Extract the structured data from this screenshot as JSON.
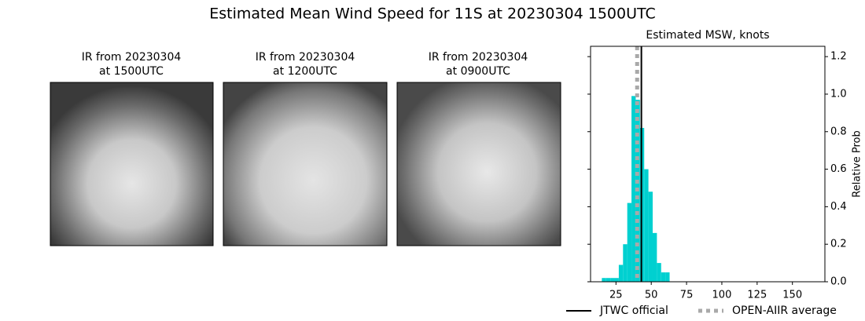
{
  "title": "Estimated Mean Wind Speed for 11S at 20230304 1500UTC",
  "panels": [
    {
      "title": [
        "IR from 20230304",
        "at 1500UTC"
      ]
    },
    {
      "title": [
        "IR from 20230304",
        "at 1200UTC"
      ]
    },
    {
      "title": [
        "IR from 20230304",
        "at 0900UTC"
      ]
    }
  ],
  "chart_data": {
    "type": "histogram",
    "title": "Estimated MSW, knots",
    "y_label": "Relative Prob",
    "bins": [
      15,
      18,
      21,
      24,
      27,
      30,
      33,
      36,
      39,
      42,
      45,
      48,
      51,
      54,
      57,
      60,
      63
    ],
    "values": [
      0.02,
      0.02,
      0.02,
      0.02,
      0.09,
      0.2,
      0.42,
      0.99,
      0.97,
      0.82,
      0.6,
      0.48,
      0.26,
      0.1,
      0.05,
      0.05
    ],
    "color": "#00d0d0",
    "xlim": [
      7,
      173
    ],
    "xticks": [
      25,
      50,
      75,
      100,
      125,
      150
    ],
    "ylim": [
      0,
      1.255
    ],
    "yticks": [
      {
        "value": 0,
        "label": "0.0"
      },
      {
        "value": 0.2,
        "label": "0.2"
      },
      {
        "value": 0.4,
        "label": "0.4"
      },
      {
        "value": 0.6,
        "label": "0.6"
      },
      {
        "value": 0.8,
        "label": "0.8"
      },
      {
        "value": 1.0,
        "label": "1.0"
      },
      {
        "value": 1.2,
        "label": "1.2"
      }
    ],
    "lines": [
      {
        "name": "JTWC official",
        "value": 43,
        "color": "#000000",
        "style": "solid"
      },
      {
        "name": "OPEN-AIIR average",
        "value": 40,
        "color": "#a9a9a9",
        "style": "dotted"
      }
    ]
  }
}
